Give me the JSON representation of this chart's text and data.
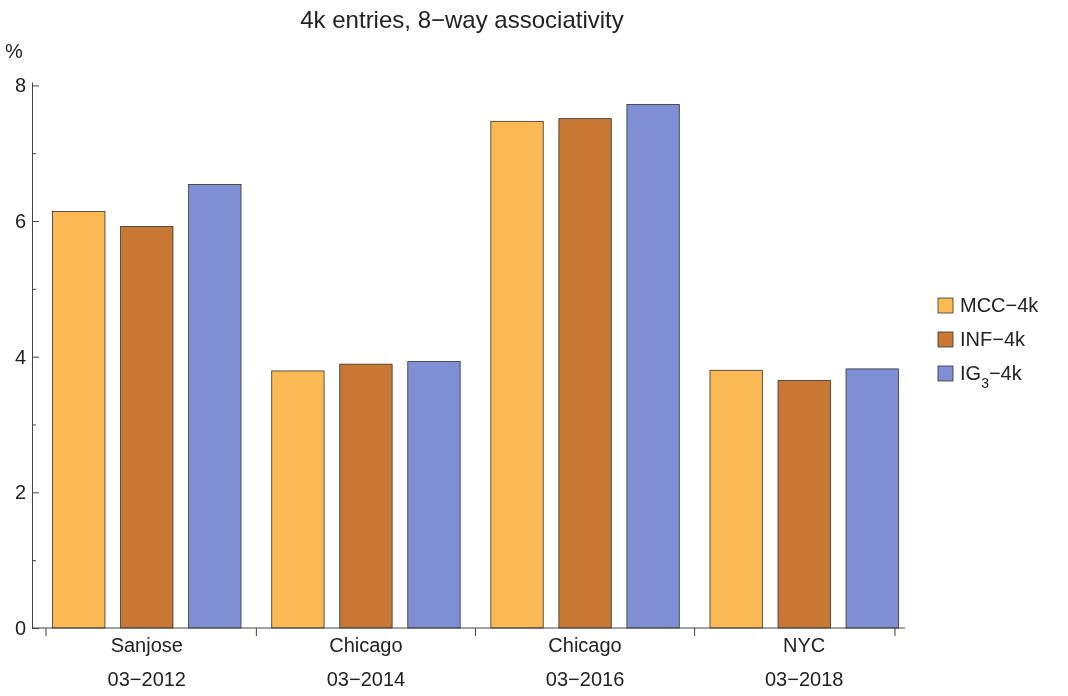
{
  "chart_data": {
    "type": "bar",
    "title": "4k entries, 8−way associativity",
    "ylabel": "%",
    "categories": [
      "Sanjose\n03−2012",
      "Chicago\n03−2014",
      "Chicago\n03−2016",
      "NYC\n03−2018"
    ],
    "series": [
      {
        "name": "MCC−4k",
        "color": "#fbb954",
        "values": [
          6.14,
          3.79,
          7.47,
          3.8
        ]
      },
      {
        "name": "INF−4k",
        "color": "#c87833",
        "values": [
          5.92,
          3.89,
          7.51,
          3.65
        ]
      },
      {
        "name": "IG$_{3}$−4k",
        "color": "#7f8fd4",
        "values": [
          6.54,
          3.93,
          7.72,
          3.82
        ]
      }
    ],
    "ylim": [
      0,
      8.05
    ],
    "yticks": [
      0,
      {
        "value": 1,
        "label": null
      },
      2,
      {
        "value": 3,
        "label": null
      },
      4,
      {
        "value": 5,
        "label": null
      },
      6,
      {
        "value": 7,
        "label": null
      },
      8
    ],
    "grid": false,
    "legend": "right"
  }
}
